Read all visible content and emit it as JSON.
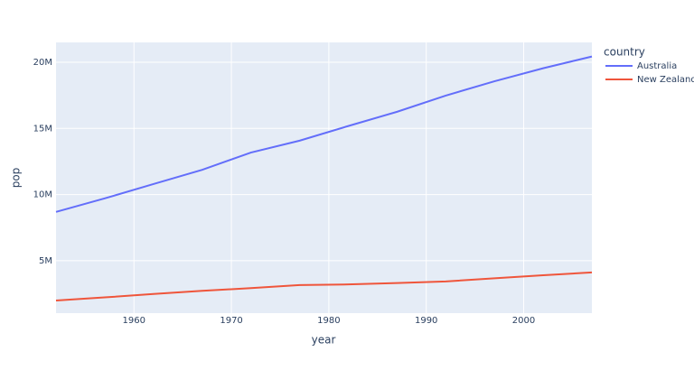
{
  "chart_data": {
    "type": "line",
    "x": [
      1952,
      1957,
      1962,
      1967,
      1972,
      1977,
      1982,
      1987,
      1992,
      1997,
      2002,
      2007
    ],
    "series": [
      {
        "name": "Australia",
        "color": "#636efa",
        "values": [
          8691212,
          9712569,
          10794968,
          11872264,
          13177000,
          14074100,
          15184200,
          16257249,
          17481977,
          18565243,
          19546792,
          20434176
        ]
      },
      {
        "name": "New Zealand",
        "color": "#EF553B",
        "values": [
          1994794,
          2229407,
          2488550,
          2728150,
          2929100,
          3164900,
          3210650,
          3317166,
          3437674,
          3676187,
          3908037,
          4115771
        ]
      }
    ],
    "xlabel": "year",
    "ylabel": "pop",
    "legend_title": "country",
    "xlim": [
      1952,
      2007
    ],
    "xticks": [
      1960,
      1970,
      1980,
      1990,
      2000
    ],
    "ylim": [
      1040000,
      21500000
    ],
    "yticks": [
      {
        "value": 5000000,
        "label": "5M"
      },
      {
        "value": 10000000,
        "label": "10M"
      },
      {
        "value": 15000000,
        "label": "15M"
      },
      {
        "value": 20000000,
        "label": "20M"
      }
    ],
    "grid": true,
    "legend": "right"
  }
}
